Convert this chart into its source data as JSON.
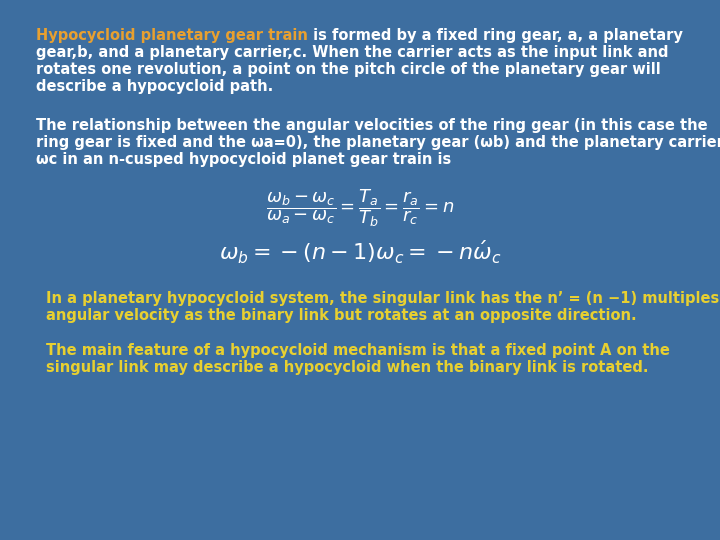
{
  "bg_color": "#3d6ea0",
  "orange_color": "#e8a030",
  "white_color": "#ffffff",
  "yellow_color": "#e8d030",
  "para1_orange": "Hypocycloid planetary gear train",
  "para1_line1_rest": " is formed by a fixed ring gear, a, a planetary",
  "para1_lines": [
    "gear,b, and a planetary carrier,c. When the carrier acts as the input link and",
    "rotates one revolution, a point on the pitch circle of the planetary gear will",
    "describe a hypocycloid path."
  ],
  "para2_lines": [
    "The relationship between the angular velocities of the ring gear (in this case the",
    "ring gear is fixed and the ωa=0), the planetary gear (ωb) and the planetary carrier",
    "ωc in an n-cusped hypocycloid planet gear train is"
  ],
  "para3_lines": [
    "In a planetary hypocycloid system, the singular link has the n’ = (n −1) multiples",
    "angular velocity as the binary link but rotates at an opposite direction."
  ],
  "para4_lines": [
    "The main feature of a hypocycloid mechanism is that a fixed point A on the",
    "singular link may describe a hypocycloid when the binary link is rotated."
  ],
  "font_size": 10.5,
  "eq1_fontsize": 13,
  "eq2_fontsize": 16
}
